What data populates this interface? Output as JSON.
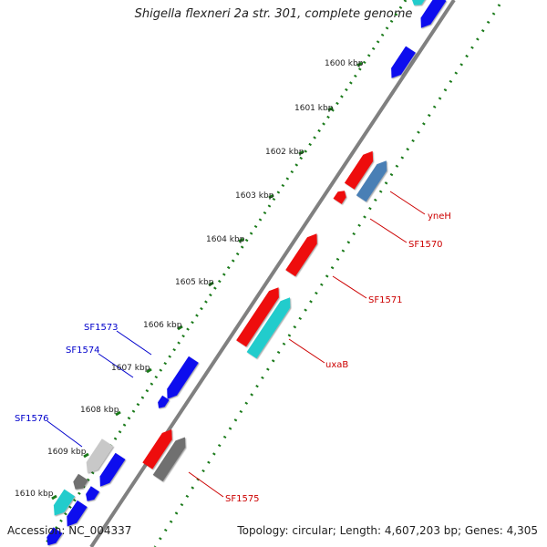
{
  "header": {
    "title": "Shigella flexneri 2a str. 301, complete genome"
  },
  "footer": {
    "accession": "Accession: NC_004337",
    "summary": "Topology: circular; Length: 4,607,203 bp; Genes: 4,305"
  },
  "ticks": [
    {
      "label": "1600 kbp"
    },
    {
      "label": "1601 kbp"
    },
    {
      "label": "1602 kbp"
    },
    {
      "label": "1603 kbp"
    },
    {
      "label": "1604 kbp"
    },
    {
      "label": "1605 kbp"
    },
    {
      "label": "1606 kbp"
    },
    {
      "label": "1607 kbp"
    },
    {
      "label": "1608 kbp"
    },
    {
      "label": "1609 kbp"
    },
    {
      "label": "1610 kbp"
    }
  ],
  "gene_labels": [
    {
      "name": "yneH",
      "color": "#cc0000"
    },
    {
      "name": "SF1570",
      "color": "#cc0000"
    },
    {
      "name": "SF1571",
      "color": "#cc0000"
    },
    {
      "name": "uxaB",
      "color": "#cc0000"
    },
    {
      "name": "SF1575",
      "color": "#cc0000"
    },
    {
      "name": "SF1573",
      "color": "#0000cc"
    },
    {
      "name": "SF1574",
      "color": "#0000cc"
    },
    {
      "name": "SF1576",
      "color": "#0000cc"
    }
  ],
  "colors": {
    "backbone": "#808080",
    "tick_dots": "#1a7a1a",
    "red_gene": "#ee1111",
    "blue_gene": "#1111ee",
    "cyan_gene": "#22cccc",
    "steel_gene": "#4a7fb5",
    "grey_gene": "#707070",
    "light_grey_gene": "#c8c8c8"
  }
}
